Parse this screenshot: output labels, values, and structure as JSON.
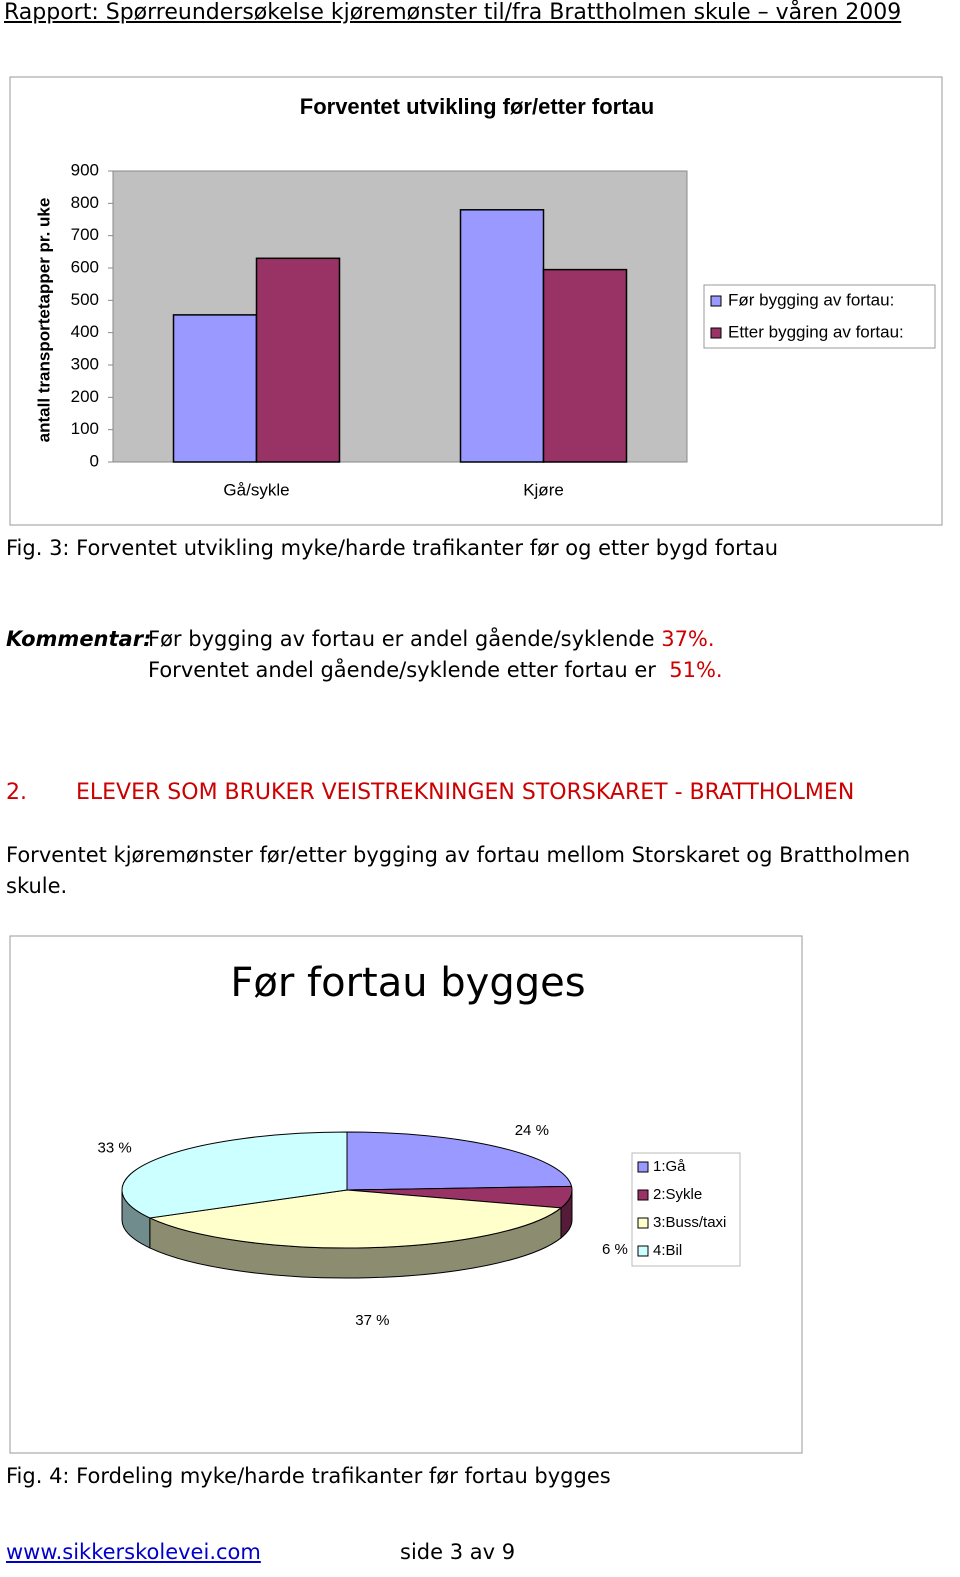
{
  "header": {
    "title": "Rapport: Spørreundersøkelse kjøremønster til/fra Brattholmen skule – våren 2009"
  },
  "chart_data": [
    {
      "type": "bar",
      "title": "Forventet utvikling før/etter fortau",
      "y_label": "antall transportetapper pr. uke",
      "categories": [
        "Gå/sykle",
        "Kjøre"
      ],
      "series": [
        {
          "name": "Før bygging av fortau:",
          "color": "#9999ff",
          "values": [
            455,
            780
          ]
        },
        {
          "name": "Etter bygging av fortau:",
          "color": "#993366",
          "values": [
            630,
            595
          ]
        }
      ],
      "ylim": [
        0,
        900
      ],
      "yticks": [
        0,
        100,
        200,
        300,
        400,
        500,
        600,
        700,
        800,
        900
      ],
      "grid": false,
      "legend": "right"
    },
    {
      "type": "pie",
      "title": "Før fortau bygges",
      "categories": [
        "1:Gå",
        "2:Sykle",
        "3:Buss/taxi",
        "4:Bil"
      ],
      "values": [
        24,
        6,
        37,
        33
      ],
      "value_labels": [
        "24 %",
        "6 %",
        "37 %",
        "33 %"
      ],
      "colors": [
        "#9999ff",
        "#993366",
        "#ffffcc",
        "#ccffff"
      ],
      "legend": "right"
    }
  ],
  "caption_fig3": "Fig. 3: Forventet utvikling myke/harde trafikanter før og etter bygd fortau",
  "comment": {
    "label": "Kommentar:",
    "line1": "Før bygging av fortau er andel gående/syklende",
    "value1": "37%.",
    "line2": "Forventet andel gående/syklende etter fortau er",
    "value2": "51%."
  },
  "section": {
    "number": "2.",
    "title": "ELEVER SOM BRUKER VEISTREKNINGEN STORSKARET - BRATTHOLMEN"
  },
  "paragraph": "Forventet kjøremønster før/etter bygging av fortau mellom Storskaret og Brattholmen skule.",
  "caption_fig4": "Fig. 4: Fordeling myke/harde trafikanter før fortau bygges",
  "footer": {
    "link": "www.sikkerskolevei.com",
    "page": "side 3 av 9"
  }
}
